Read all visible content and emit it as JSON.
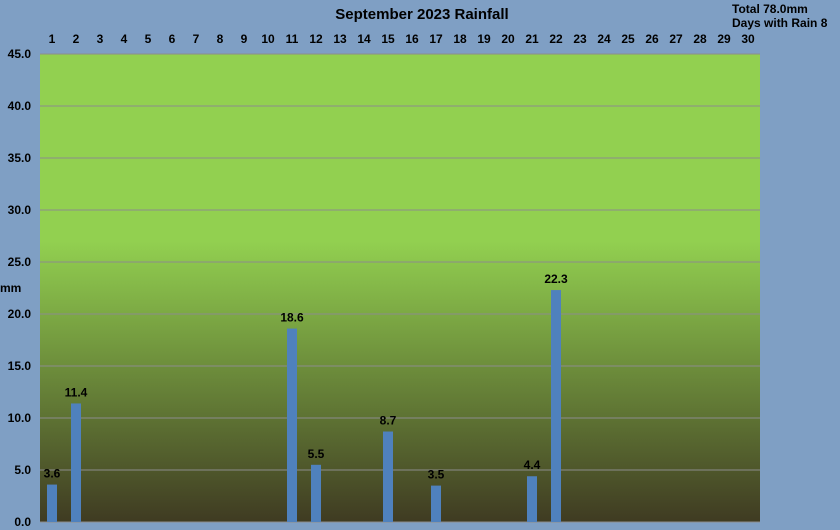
{
  "colors": {
    "page_background": "#7f9fc4",
    "plot_top": "#92d050",
    "plot_bottom": "#3f3b22",
    "bar": "#4f81bd",
    "grid": "#8c8c8c"
  },
  "chart_data": {
    "type": "bar",
    "title": "September 2023 Rainfall",
    "summary": {
      "total": "Total 78.0mm",
      "days_with_rain": "Days with Rain 8"
    },
    "ylabel": "mm",
    "xlabel": "",
    "x_axis_position": "top",
    "ylim": [
      0,
      45
    ],
    "y_ticks": [
      "0.0",
      "5.0",
      "10.0",
      "15.0",
      "20.0",
      "25.0",
      "30.0",
      "35.0",
      "40.0",
      "45.0"
    ],
    "grid": true,
    "categories": [
      "1",
      "2",
      "3",
      "4",
      "5",
      "6",
      "7",
      "8",
      "9",
      "10",
      "11",
      "12",
      "13",
      "14",
      "15",
      "16",
      "17",
      "18",
      "19",
      "20",
      "21",
      "22",
      "23",
      "24",
      "25",
      "26",
      "27",
      "28",
      "29",
      "30"
    ],
    "values": [
      3.6,
      11.4,
      0,
      0,
      0,
      0,
      0,
      0,
      0,
      0,
      18.6,
      5.5,
      0,
      0,
      8.7,
      0,
      3.5,
      0,
      0,
      0,
      4.4,
      22.3,
      0,
      0,
      0,
      0,
      0,
      0,
      0,
      0
    ],
    "data_labels": [
      "3.6",
      "11.4",
      "",
      "",
      "",
      "",
      "",
      "",
      "",
      "",
      "18.6",
      "5.5",
      "",
      "",
      "8.7",
      "",
      "3.5",
      "",
      "",
      "",
      "4.4",
      "22.3",
      "",
      "",
      "",
      "",
      "",
      "",
      "",
      ""
    ]
  }
}
